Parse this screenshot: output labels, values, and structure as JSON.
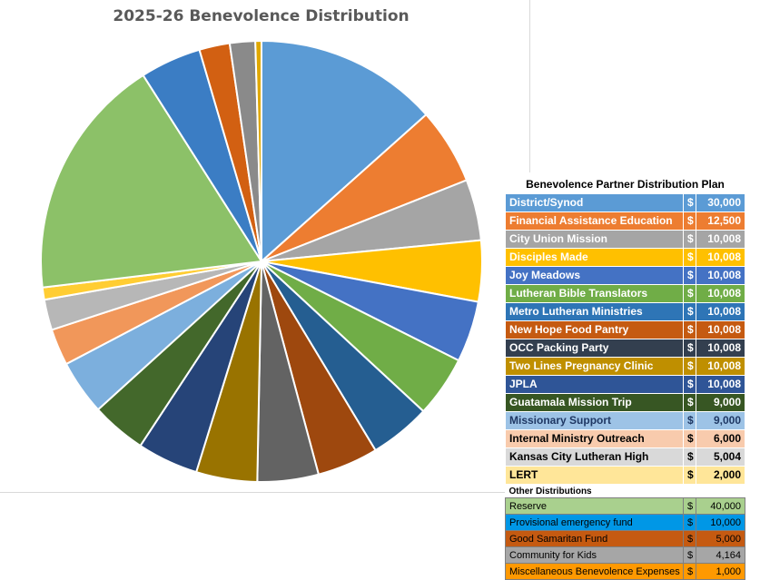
{
  "chart_data": {
    "type": "pie",
    "title": "2025-26 Benevolence Distribution",
    "categories": [
      "District/Synod",
      "Financial Assistance Education",
      "City Union Mission",
      "Disciples Made",
      "Joy Meadows",
      "Lutheran Bible Translators",
      "Metro Lutheran Ministries",
      "New Hope Food Pantry",
      "OCC Packing Party",
      "Two Lines Pregnancy Clinic",
      "JPLA",
      "Guatamala Mission Trip",
      "Missionary Support",
      "Internal Ministry Outreach",
      "Kansas City Lutheran High",
      "LERT",
      "Reserve",
      "Provisional emergency fund",
      "Good Samaritan Fund",
      "Community for Kids",
      "Miscellaneous Benevolence Expenses"
    ],
    "values": [
      30000,
      12500,
      10008,
      10008,
      10008,
      10008,
      10008,
      10008,
      10008,
      10008,
      10008,
      9000,
      9000,
      6000,
      5004,
      2000,
      40000,
      10000,
      5000,
      4164,
      1000
    ],
    "colors": [
      "#5b9bd5",
      "#ed7d31",
      "#a5a5a5",
      "#ffc000",
      "#4472c4",
      "#70ad47",
      "#255e91",
      "#9e480e",
      "#636363",
      "#997300",
      "#264478",
      "#43682b",
      "#7cafdd",
      "#f1975a",
      "#b7b7b7",
      "#ffcd33",
      "#8cc168",
      "#3b7dc4",
      "#d26012",
      "#8a8a8a",
      "#e0a800"
    ]
  },
  "table": {
    "title": "Benevolence Partner Distribution Plan",
    "currency": "$",
    "partners": [
      {
        "name": "District/Synod",
        "amount": "30,000",
        "bg": "#5b9bd5",
        "fg": "#ffffff"
      },
      {
        "name": "Financial Assistance Education",
        "amount": "12,500",
        "bg": "#ed7d31",
        "fg": "#ffffff"
      },
      {
        "name": "City Union Mission",
        "amount": "10,008",
        "bg": "#a5a5a5",
        "fg": "#ffffff"
      },
      {
        "name": "Disciples Made",
        "amount": "10,008",
        "bg": "#ffc000",
        "fg": "#ffffff"
      },
      {
        "name": "Joy Meadows",
        "amount": "10,008",
        "bg": "#4472c4",
        "fg": "#ffffff"
      },
      {
        "name": "Lutheran Bible Translators",
        "amount": "10,008",
        "bg": "#70ad47",
        "fg": "#ffffff"
      },
      {
        "name": "Metro Lutheran Ministries",
        "amount": "10,008",
        "bg": "#2e75b6",
        "fg": "#ffffff"
      },
      {
        "name": "New Hope Food Pantry",
        "amount": "10,008",
        "bg": "#c55a11",
        "fg": "#ffffff"
      },
      {
        "name": "OCC Packing Party",
        "amount": "10,008",
        "bg": "#333f4f",
        "fg": "#ffffff"
      },
      {
        "name": "Two Lines Pregnancy Clinic",
        "amount": "10,008",
        "bg": "#bf8f00",
        "fg": "#ffffff"
      },
      {
        "name": "JPLA",
        "amount": "10,008",
        "bg": "#2f5597",
        "fg": "#ffffff"
      },
      {
        "name": "Guatamala Mission Trip",
        "amount": "9,000",
        "bg": "#375623",
        "fg": "#ffffff"
      },
      {
        "name": "Missionary Support",
        "amount": "9,000",
        "bg": "#9dc3e6",
        "fg": "#1f3864"
      },
      {
        "name": "Internal Ministry Outreach",
        "amount": "6,000",
        "bg": "#f8cbad",
        "fg": "#000000"
      },
      {
        "name": "Kansas City Lutheran High",
        "amount": "5,004",
        "bg": "#d9d9d9",
        "fg": "#000000"
      },
      {
        "name": "LERT",
        "amount": "2,000",
        "bg": "#ffe699",
        "fg": "#000000"
      }
    ],
    "other_title": "Other Distributions",
    "others": [
      {
        "name": "Reserve",
        "amount": "40,000",
        "bg": "#a9d08e",
        "fg": "#000000"
      },
      {
        "name": "Provisional emergency fund",
        "amount": "10,000",
        "bg": "#0097e6",
        "fg": "#000000"
      },
      {
        "name": "Good Samaritan Fund",
        "amount": "5,000",
        "bg": "#c55a11",
        "fg": "#000000"
      },
      {
        "name": "Community for Kids",
        "amount": "4,164",
        "bg": "#a6a6a6",
        "fg": "#000000"
      },
      {
        "name": "Miscellaneous Benevolence Expenses",
        "amount": "1,000",
        "bg": "#ff9900",
        "fg": "#000000"
      }
    ]
  }
}
